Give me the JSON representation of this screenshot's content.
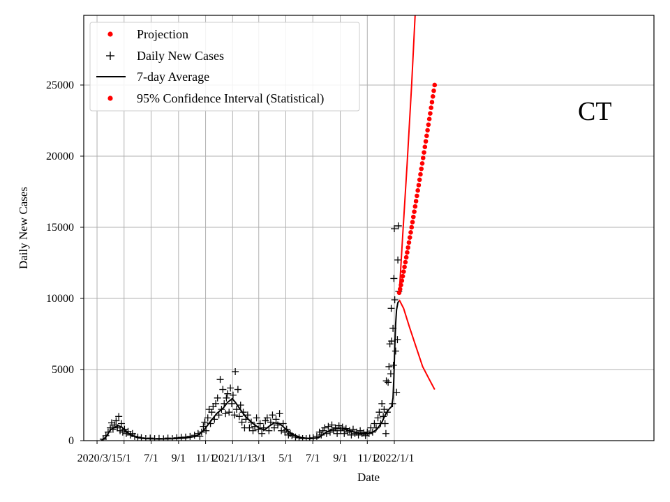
{
  "chart_data": {
    "type": "scatter",
    "region_label": "CT",
    "xlabel": "Date",
    "ylabel": "Daily New Cases",
    "grid": true,
    "legend_position": "top-left",
    "x_axis": {
      "unit": "days since 2020-03-01",
      "range": [
        -30,
        1257
      ],
      "ticks": [
        {
          "day": 0,
          "label": "2020/3/1"
        },
        {
          "day": 61,
          "label": "5/1"
        },
        {
          "day": 122,
          "label": "7/1"
        },
        {
          "day": 184,
          "label": "9/1"
        },
        {
          "day": 245,
          "label": "11/1"
        },
        {
          "day": 306,
          "label": "2021/1/1"
        },
        {
          "day": 365,
          "label": "3/1"
        },
        {
          "day": 426,
          "label": "5/1"
        },
        {
          "day": 487,
          "label": "7/1"
        },
        {
          "day": 549,
          "label": "9/1"
        },
        {
          "day": 610,
          "label": "11/1"
        },
        {
          "day": 671,
          "label": "2022/1/1"
        }
      ]
    },
    "y_axis": {
      "range": [
        0,
        29900
      ],
      "ticks": [
        0,
        5000,
        10000,
        15000,
        20000,
        25000
      ]
    },
    "legend": [
      {
        "label": "Projection",
        "marker": "dot",
        "color": "#ff0000"
      },
      {
        "label": "Daily New Cases",
        "marker": "plus",
        "color": "#000000"
      },
      {
        "label": "7-day Average",
        "marker": "line",
        "color": "#000000"
      },
      {
        "label": "95% Confidence Interval (Statistical)",
        "marker": "dot",
        "color": "#ff0000"
      }
    ],
    "series": [
      {
        "name": "7-day Average",
        "style": "line",
        "color": "#000000",
        "points": [
          [
            10,
            0
          ],
          [
            20,
            250
          ],
          [
            30,
            750
          ],
          [
            40,
            950
          ],
          [
            48,
            1050
          ],
          [
            56,
            950
          ],
          [
            65,
            650
          ],
          [
            78,
            380
          ],
          [
            92,
            200
          ],
          [
            110,
            140
          ],
          [
            140,
            120
          ],
          [
            170,
            130
          ],
          [
            200,
            180
          ],
          [
            225,
            320
          ],
          [
            240,
            700
          ],
          [
            255,
            1300
          ],
          [
            270,
            1900
          ],
          [
            285,
            2300
          ],
          [
            295,
            2700
          ],
          [
            305,
            2950
          ],
          [
            312,
            2700
          ],
          [
            322,
            2250
          ],
          [
            335,
            1700
          ],
          [
            350,
            1250
          ],
          [
            365,
            900
          ],
          [
            378,
            750
          ],
          [
            390,
            1050
          ],
          [
            400,
            1250
          ],
          [
            412,
            1200
          ],
          [
            425,
            850
          ],
          [
            440,
            450
          ],
          [
            460,
            220
          ],
          [
            480,
            130
          ],
          [
            500,
            200
          ],
          [
            515,
            550
          ],
          [
            530,
            800
          ],
          [
            545,
            850
          ],
          [
            560,
            800
          ],
          [
            575,
            650
          ],
          [
            590,
            500
          ],
          [
            605,
            450
          ],
          [
            620,
            550
          ],
          [
            632,
            800
          ],
          [
            643,
            1300
          ],
          [
            652,
            1900
          ],
          [
            660,
            2250
          ],
          [
            665,
            2400
          ],
          [
            668,
            3000
          ],
          [
            670,
            4500
          ],
          [
            672,
            6500
          ],
          [
            674,
            8200
          ],
          [
            676,
            9200
          ],
          [
            679,
            9700
          ],
          [
            681,
            9800
          ]
        ]
      },
      {
        "name": "Projection",
        "style": "line",
        "color": "#ff0000",
        "points": [
          [
            682,
            10300
          ],
          [
            690,
            14500
          ],
          [
            700,
            19500
          ],
          [
            710,
            25000
          ],
          [
            718,
            29900
          ]
        ]
      },
      {
        "name": "95% Confidence Interval (Statistical) - lower",
        "style": "line",
        "color": "#ff0000",
        "points": [
          [
            682,
            9900
          ],
          [
            692,
            9300
          ],
          [
            705,
            8000
          ],
          [
            720,
            6600
          ],
          [
            735,
            5200
          ],
          [
            750,
            4300
          ],
          [
            762,
            3600
          ]
        ]
      },
      {
        "name": "95% Confidence Interval (Statistical) - upper",
        "style": "dots",
        "color": "#ff0000",
        "x_start": 682,
        "x_end": 762,
        "x_step": 2,
        "y_start": 10400,
        "y_end": 25000
      },
      {
        "name": "Daily New Cases",
        "style": "plus",
        "color": "#000000",
        "points": [
          [
            14,
            100
          ],
          [
            20,
            350
          ],
          [
            25,
            600
          ],
          [
            30,
            900
          ],
          [
            33,
            1250
          ],
          [
            36,
            800
          ],
          [
            40,
            1100
          ],
          [
            43,
            1400
          ],
          [
            46,
            900
          ],
          [
            49,
            1700
          ],
          [
            52,
            700
          ],
          [
            55,
            1200
          ],
          [
            58,
            600
          ],
          [
            62,
            800
          ],
          [
            66,
            500
          ],
          [
            70,
            650
          ],
          [
            75,
            400
          ],
          [
            80,
            500
          ],
          [
            85,
            300
          ],
          [
            92,
            250
          ],
          [
            100,
            200
          ],
          [
            110,
            150
          ],
          [
            120,
            180
          ],
          [
            130,
            140
          ],
          [
            140,
            160
          ],
          [
            150,
            130
          ],
          [
            160,
            180
          ],
          [
            170,
            140
          ],
          [
            180,
            200
          ],
          [
            190,
            230
          ],
          [
            200,
            250
          ],
          [
            210,
            300
          ],
          [
            220,
            380
          ],
          [
            228,
            500
          ],
          [
            232,
            300
          ],
          [
            236,
            600
          ],
          [
            240,
            1000
          ],
          [
            243,
            1300
          ],
          [
            246,
            700
          ],
          [
            250,
            1600
          ],
          [
            253,
            2200
          ],
          [
            256,
            1200
          ],
          [
            259,
            2000
          ],
          [
            262,
            2400
          ],
          [
            265,
            1500
          ],
          [
            268,
            2600
          ],
          [
            272,
            3000
          ],
          [
            275,
            1800
          ],
          [
            278,
            4300
          ],
          [
            281,
            2200
          ],
          [
            284,
            3600
          ],
          [
            287,
            2600
          ],
          [
            290,
            1900
          ],
          [
            292,
            3000
          ],
          [
            295,
            3300
          ],
          [
            298,
            2000
          ],
          [
            301,
            3700
          ],
          [
            304,
            2600
          ],
          [
            307,
            3200
          ],
          [
            310,
            1800
          ],
          [
            312,
            4850
          ],
          [
            315,
            2200
          ],
          [
            318,
            3600
          ],
          [
            321,
            1700
          ],
          [
            324,
            2500
          ],
          [
            327,
            1300
          ],
          [
            330,
            2000
          ],
          [
            333,
            900
          ],
          [
            336,
            1500
          ],
          [
            340,
            1800
          ],
          [
            344,
            900
          ],
          [
            348,
            1300
          ],
          [
            352,
            700
          ],
          [
            356,
            1000
          ],
          [
            360,
            1600
          ],
          [
            364,
            800
          ],
          [
            368,
            1200
          ],
          [
            372,
            500
          ],
          [
            376,
            900
          ],
          [
            380,
            1400
          ],
          [
            384,
            1600
          ],
          [
            388,
            700
          ],
          [
            392,
            1300
          ],
          [
            396,
            1800
          ],
          [
            400,
            900
          ],
          [
            404,
            1500
          ],
          [
            408,
            1100
          ],
          [
            412,
            1900
          ],
          [
            416,
            700
          ],
          [
            420,
            1200
          ],
          [
            424,
            600
          ],
          [
            428,
            800
          ],
          [
            432,
            400
          ],
          [
            436,
            500
          ],
          [
            440,
            350
          ],
          [
            448,
            250
          ],
          [
            456,
            200
          ],
          [
            464,
            150
          ],
          [
            472,
            150
          ],
          [
            480,
            180
          ],
          [
            488,
            200
          ],
          [
            496,
            300
          ],
          [
            502,
            600
          ],
          [
            506,
            400
          ],
          [
            510,
            700
          ],
          [
            514,
            900
          ],
          [
            518,
            500
          ],
          [
            522,
            1000
          ],
          [
            526,
            600
          ],
          [
            530,
            1100
          ],
          [
            534,
            700
          ],
          [
            538,
            900
          ],
          [
            542,
            500
          ],
          [
            546,
            1050
          ],
          [
            550,
            700
          ],
          [
            554,
            950
          ],
          [
            558,
            500
          ],
          [
            562,
            850
          ],
          [
            566,
            600
          ],
          [
            570,
            700
          ],
          [
            574,
            400
          ],
          [
            578,
            800
          ],
          [
            582,
            500
          ],
          [
            586,
            600
          ],
          [
            590,
            400
          ],
          [
            594,
            700
          ],
          [
            598,
            500
          ],
          [
            602,
            550
          ],
          [
            606,
            350
          ],
          [
            610,
            600
          ],
          [
            614,
            500
          ],
          [
            618,
            900
          ],
          [
            622,
            600
          ],
          [
            626,
            1200
          ],
          [
            630,
            900
          ],
          [
            634,
            1600
          ],
          [
            637,
            2000
          ],
          [
            640,
            1200
          ],
          [
            643,
            2600
          ],
          [
            646,
            1700
          ],
          [
            648,
            2200
          ],
          [
            650,
            1200
          ],
          [
            652,
            500
          ],
          [
            653,
            4200
          ],
          [
            655,
            2000
          ],
          [
            657,
            4100
          ],
          [
            659,
            5200
          ],
          [
            661,
            6800
          ],
          [
            663,
            4700
          ],
          [
            664,
            9300
          ],
          [
            665,
            7000
          ],
          [
            667,
            2600
          ],
          [
            668,
            7900
          ],
          [
            669,
            5300
          ],
          [
            670,
            11400
          ],
          [
            671,
            14900
          ],
          [
            672,
            9900
          ],
          [
            674,
            6300
          ],
          [
            676,
            3400
          ],
          [
            678,
            7100
          ],
          [
            679,
            12700
          ],
          [
            680,
            15100
          ],
          [
            681,
            10500
          ]
        ]
      }
    ]
  }
}
